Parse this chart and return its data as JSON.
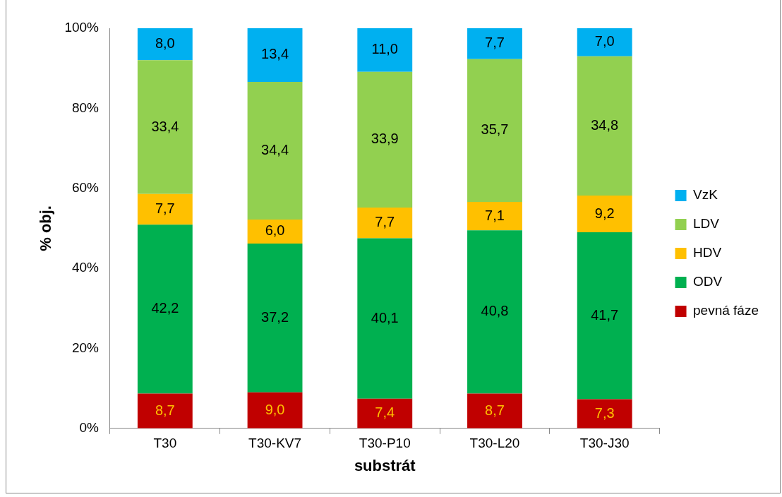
{
  "chart_data": {
    "type": "bar",
    "stacked": true,
    "xlabel": "substrát",
    "ylabel": "% obj.",
    "categories": [
      "T30",
      "T30-KV7",
      "T30-P10",
      "T30-L20",
      "T30-J30"
    ],
    "ylim": [
      0,
      100
    ],
    "yticks": [
      {
        "value": 0,
        "label": "0%"
      },
      {
        "value": 20,
        "label": "20%"
      },
      {
        "value": 40,
        "label": "40%"
      },
      {
        "value": 60,
        "label": "60%"
      },
      {
        "value": 80,
        "label": "80%"
      },
      {
        "value": 100,
        "label": "100%"
      }
    ],
    "grid": false,
    "legend": "right",
    "series": [
      {
        "name": "pevná fáze",
        "color": "#c00000",
        "values": [
          8.7,
          9.0,
          7.4,
          8.7,
          7.3
        ],
        "value_labels": [
          "8,7",
          "9,0",
          "7,4",
          "8,7",
          "7,3"
        ]
      },
      {
        "name": "ODV",
        "color": "#00b050",
        "values": [
          42.2,
          37.2,
          40.1,
          40.8,
          41.7
        ],
        "value_labels": [
          "42,2",
          "37,2",
          "40,1",
          "40,8",
          "41,7"
        ]
      },
      {
        "name": "HDV",
        "color": "#ffc000",
        "values": [
          7.7,
          6.0,
          7.7,
          7.1,
          9.2
        ],
        "value_labels": [
          "7,7",
          "6,0",
          "7,7",
          "7,1",
          "9,2"
        ]
      },
      {
        "name": "LDV",
        "color": "#92d050",
        "values": [
          33.4,
          34.4,
          33.9,
          35.7,
          34.8
        ],
        "value_labels": [
          "33,4",
          "34,4",
          "33,9",
          "35,7",
          "34,8"
        ]
      },
      {
        "name": "VzK",
        "color": "#00b0f0",
        "values": [
          8.0,
          13.4,
          11.0,
          7.7,
          7.0
        ],
        "value_labels": [
          "8,0",
          "13,4",
          "11,0",
          "7,7",
          "7,0"
        ]
      }
    ]
  }
}
